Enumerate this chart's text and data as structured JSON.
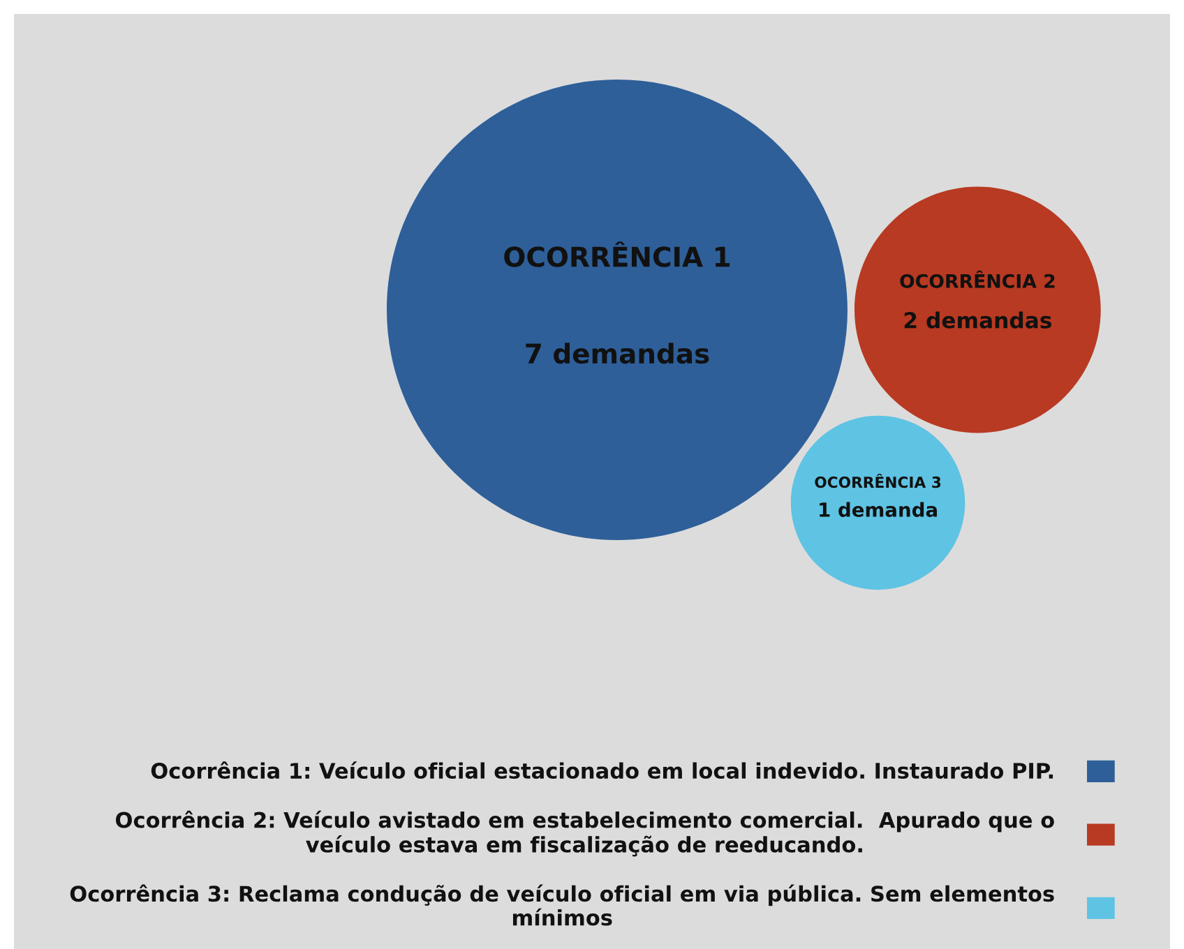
{
  "chart_data": {
    "type": "other",
    "categories": [
      "OCORRÊNCIA 1",
      "OCORRÊNCIA 2",
      "OCORRÊNCIA 3"
    ],
    "series": [
      {
        "name": "Ocorrência 1: Veículo oficial estacionado em local indevido. Instaurado PIP.",
        "color": "#2e5f99",
        "values": [
          7,
          null,
          null
        ],
        "value_labels": [
          "7 demandas",
          null,
          null
        ]
      },
      {
        "name": "Ocorrência 2: Veículo avistado em estabelecimento comercial.  Apurado que o\nveículo estava em fiscalização de reeducando.",
        "color": "#b83a22",
        "values": [
          null,
          2,
          null
        ],
        "value_labels": [
          null,
          "2 demandas",
          null
        ]
      },
      {
        "name": "Ocorrência 3: Reclama condução de veículo oficial em via pública. Sem elementos\nmínimos",
        "color": "#5fc3e4",
        "values": [
          null,
          null,
          1
        ],
        "value_labels": [
          null,
          null,
          "1 demanda"
        ]
      }
    ],
    "legend": "bottom"
  }
}
